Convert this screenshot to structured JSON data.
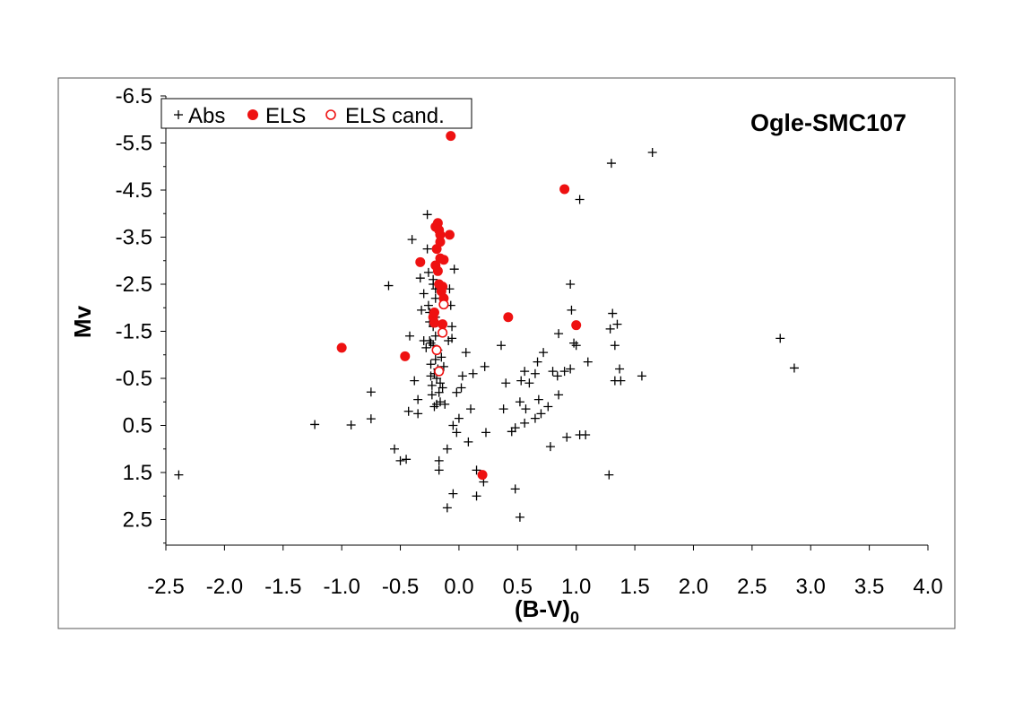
{
  "chart_data": {
    "type": "scatter",
    "title": "Ogle-SMC107",
    "xlabel_main": "(B-V)",
    "xlabel_sub": "0",
    "ylabel": "Mv",
    "xlim": [
      -2.5,
      4.0
    ],
    "ylim": [
      -6.5,
      3.0
    ],
    "y_inverted": true,
    "grid": false,
    "legend_position": "top-left",
    "x_ticks": [
      "-2.5",
      "-2.0",
      "-1.5",
      "-1.0",
      "-0.5",
      "0.0",
      "0.5",
      "1.0",
      "1.5",
      "2.0",
      "2.5",
      "3.0",
      "3.5",
      "4.0"
    ],
    "x_tick_values": [
      -2.5,
      -2.0,
      -1.5,
      -1.0,
      -0.5,
      0.0,
      0.5,
      1.0,
      1.5,
      2.0,
      2.5,
      3.0,
      3.5,
      4.0
    ],
    "y_ticks": [
      "-6.5",
      "-5.5",
      "-4.5",
      "-3.5",
      "-2.5",
      "-1.5",
      "-0.5",
      "0.5",
      "1.5",
      "2.5"
    ],
    "y_tick_values": [
      -6.5,
      -5.5,
      -4.5,
      -3.5,
      -2.5,
      -1.5,
      -0.5,
      0.5,
      1.5,
      2.5
    ],
    "colors": {
      "abs": "#000000",
      "els": "#ee1111"
    },
    "series": [
      {
        "name": "Abs",
        "marker": "plus",
        "points": [
          [
            -2.39,
            1.55
          ],
          [
            -1.23,
            0.48
          ],
          [
            -0.92,
            0.49
          ],
          [
            -0.75,
            0.36
          ],
          [
            -0.75,
            -0.21
          ],
          [
            -0.6,
            -2.47
          ],
          [
            -0.55,
            1.0
          ],
          [
            -0.5,
            1.25
          ],
          [
            -0.45,
            1.22
          ],
          [
            -0.43,
            0.2
          ],
          [
            -0.42,
            -1.4
          ],
          [
            -0.4,
            -3.45
          ],
          [
            -0.38,
            -0.45
          ],
          [
            -0.35,
            0.25
          ],
          [
            -0.35,
            -0.05
          ],
          [
            -0.33,
            -2.63
          ],
          [
            -0.32,
            -1.95
          ],
          [
            -0.3,
            -2.3
          ],
          [
            -0.3,
            -1.3
          ],
          [
            -0.28,
            -1.15
          ],
          [
            -0.27,
            -3.98
          ],
          [
            -0.27,
            -3.25
          ],
          [
            -0.26,
            -2.75
          ],
          [
            -0.26,
            -2.05
          ],
          [
            -0.25,
            -1.9
          ],
          [
            -0.25,
            -1.7
          ],
          [
            -0.25,
            -1.3
          ],
          [
            -0.24,
            -1.25
          ],
          [
            -0.24,
            -0.8
          ],
          [
            -0.24,
            -0.55
          ],
          [
            -0.23,
            -0.35
          ],
          [
            -0.23,
            -0.15
          ],
          [
            -0.22,
            -2.6
          ],
          [
            -0.22,
            -2.5
          ],
          [
            -0.22,
            -1.6
          ],
          [
            -0.22,
            -1.2
          ],
          [
            -0.21,
            -0.6
          ],
          [
            -0.21,
            0.1
          ],
          [
            -0.2,
            -2.4
          ],
          [
            -0.2,
            -2.2
          ],
          [
            -0.2,
            -1.8
          ],
          [
            -0.2,
            -1.4
          ],
          [
            -0.2,
            -0.9
          ],
          [
            -0.19,
            -0.5
          ],
          [
            -0.19,
            0.05
          ],
          [
            -0.18,
            -1.1
          ],
          [
            -0.18,
            -0.7
          ],
          [
            -0.17,
            -0.2
          ],
          [
            -0.17,
            1.25
          ],
          [
            -0.17,
            1.45
          ],
          [
            -0.16,
            -0.4
          ],
          [
            -0.16,
            0.0
          ],
          [
            -0.15,
            -0.95
          ],
          [
            -0.14,
            -0.3
          ],
          [
            -0.13,
            -0.75
          ],
          [
            -0.12,
            0.05
          ],
          [
            -0.1,
            1.0
          ],
          [
            -0.1,
            2.25
          ],
          [
            -0.09,
            -1.3
          ],
          [
            -0.08,
            -2.4
          ],
          [
            -0.07,
            -2.05
          ],
          [
            -0.06,
            -1.6
          ],
          [
            -0.06,
            -1.35
          ],
          [
            -0.05,
            0.5
          ],
          [
            -0.05,
            1.95
          ],
          [
            -0.04,
            -2.82
          ],
          [
            -0.02,
            0.65
          ],
          [
            -0.02,
            -0.2
          ],
          [
            0.0,
            0.35
          ],
          [
            0.02,
            -0.3
          ],
          [
            0.03,
            -0.55
          ],
          [
            0.06,
            -1.05
          ],
          [
            0.08,
            0.85
          ],
          [
            0.1,
            0.15
          ],
          [
            0.12,
            -0.6
          ],
          [
            0.15,
            1.45
          ],
          [
            0.15,
            2.0
          ],
          [
            0.2,
            1.55
          ],
          [
            0.21,
            1.7
          ],
          [
            0.22,
            -0.75
          ],
          [
            0.23,
            0.65
          ],
          [
            0.36,
            -1.2
          ],
          [
            0.38,
            0.15
          ],
          [
            0.4,
            -0.4
          ],
          [
            0.45,
            0.63
          ],
          [
            0.48,
            1.85
          ],
          [
            0.48,
            0.55
          ],
          [
            0.52,
            0.0
          ],
          [
            0.52,
            2.45
          ],
          [
            0.53,
            -0.45
          ],
          [
            0.56,
            0.45
          ],
          [
            0.56,
            -0.65
          ],
          [
            0.57,
            0.15
          ],
          [
            0.6,
            -0.4
          ],
          [
            0.65,
            -0.6
          ],
          [
            0.65,
            0.35
          ],
          [
            0.67,
            -0.85
          ],
          [
            0.68,
            -0.05
          ],
          [
            0.7,
            0.25
          ],
          [
            0.72,
            -1.05
          ],
          [
            0.76,
            0.1
          ],
          [
            0.78,
            0.95
          ],
          [
            0.8,
            -0.65
          ],
          [
            0.84,
            -0.55
          ],
          [
            0.85,
            -0.15
          ],
          [
            0.85,
            -1.45
          ],
          [
            0.9,
            -0.65
          ],
          [
            0.92,
            0.75
          ],
          [
            0.95,
            -2.5
          ],
          [
            0.95,
            -0.7
          ],
          [
            0.96,
            -1.95
          ],
          [
            0.98,
            -1.25
          ],
          [
            1.0,
            -1.2
          ],
          [
            1.03,
            0.7
          ],
          [
            1.03,
            -4.3
          ],
          [
            1.08,
            0.7
          ],
          [
            1.1,
            -0.85
          ],
          [
            1.28,
            1.55
          ],
          [
            1.29,
            -1.55
          ],
          [
            1.3,
            -5.07
          ],
          [
            1.31,
            -1.88
          ],
          [
            1.33,
            -0.45
          ],
          [
            1.33,
            -1.2
          ],
          [
            1.35,
            -1.65
          ],
          [
            1.37,
            -0.7
          ],
          [
            1.38,
            -0.45
          ],
          [
            1.56,
            -0.55
          ],
          [
            1.65,
            -5.3
          ],
          [
            2.74,
            -1.35
          ],
          [
            2.86,
            -0.72
          ]
        ]
      },
      {
        "name": "ELS",
        "marker": "filled-circle",
        "points": [
          [
            -1.0,
            -1.15
          ],
          [
            -0.46,
            -0.97
          ],
          [
            -0.33,
            -2.97
          ],
          [
            -0.22,
            -1.8
          ],
          [
            -0.21,
            -1.68
          ],
          [
            -0.21,
            -1.9
          ],
          [
            -0.2,
            -3.72
          ],
          [
            -0.2,
            -2.9
          ],
          [
            -0.19,
            -3.25
          ],
          [
            -0.18,
            -3.8
          ],
          [
            -0.18,
            -2.78
          ],
          [
            -0.17,
            -3.65
          ],
          [
            -0.17,
            -2.5
          ],
          [
            -0.16,
            -3.4
          ],
          [
            -0.16,
            -3.55
          ],
          [
            -0.16,
            -3.05
          ],
          [
            -0.15,
            -2.35
          ],
          [
            -0.14,
            -2.45
          ],
          [
            -0.14,
            -1.65
          ],
          [
            -0.13,
            -2.2
          ],
          [
            -0.13,
            -3.02
          ],
          [
            -0.08,
            -3.55
          ],
          [
            -0.07,
            -5.65
          ],
          [
            0.2,
            1.55
          ],
          [
            0.42,
            -1.8
          ],
          [
            0.9,
            -4.52
          ],
          [
            1.0,
            -1.63
          ]
        ]
      },
      {
        "name": "ELS cand.",
        "marker": "open-circle",
        "points": [
          [
            -0.19,
            -1.1
          ],
          [
            -0.17,
            -0.65
          ],
          [
            -0.14,
            -1.47
          ],
          [
            -0.13,
            -2.07
          ]
        ]
      }
    ]
  }
}
